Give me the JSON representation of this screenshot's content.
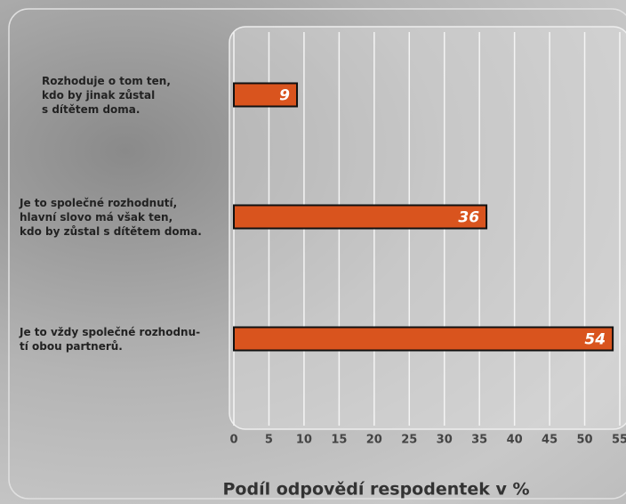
{
  "chart_data": {
    "type": "bar",
    "orientation": "horizontal",
    "categories": [
      "Rozhodujе o tom ten,\nkdo by jinak zůstal\ns dítětem doma.",
      "Je to společné  rozhodnutí,\nhlavní slovo má však ten,\nkdo by zůstal s dítětem doma.",
      "Je to vždy společné rozhodnu-\ntí obou partnerů."
    ],
    "values": [
      9,
      36,
      54
    ],
    "color": "#d9541e",
    "xlabel": "Podíl odpovědí respodentek v %",
    "xlim": [
      0,
      55
    ],
    "xticks": [
      0,
      5,
      10,
      15,
      20,
      25,
      30,
      35,
      40,
      45,
      50,
      55
    ],
    "grid": true
  }
}
